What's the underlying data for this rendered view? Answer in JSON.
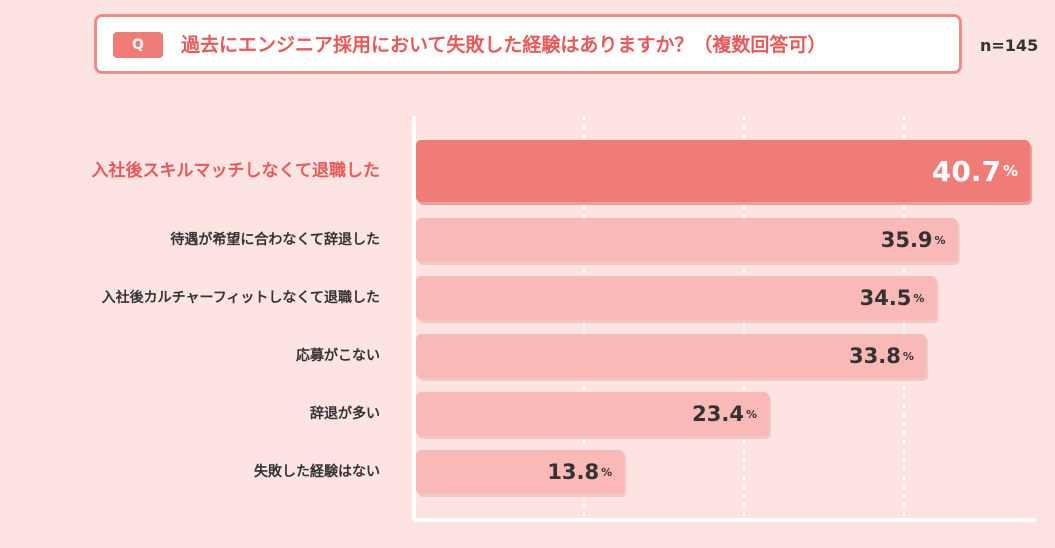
{
  "question": {
    "badge": "Q",
    "text": "過去にエンジニア採用において失敗した経験はありますか？（複数回答可）",
    "sample_size": "n=145"
  },
  "colors": {
    "highlight_bar": "#f07c77",
    "bar": "#f9b9b6",
    "highlight_label": "#e85a59",
    "label": "#333333",
    "grid": "#ffffff",
    "background": "#fde3e2"
  },
  "chart_data": {
    "type": "bar",
    "orientation": "horizontal",
    "categories": [
      "入社後スキルマッチしなくて退職した",
      "待遇が希望に合わなくて辞退した",
      "入社後カルチャーフィットしなくて退職した",
      "応募がこない",
      "辞退が多い",
      "失敗した経験はない"
    ],
    "values": [
      40.7,
      35.9,
      34.5,
      33.8,
      23.4,
      13.8
    ],
    "value_labels": [
      "40.7",
      "35.9",
      "34.5",
      "33.8",
      "23.4",
      "13.8"
    ],
    "unit": "%",
    "highlight_index": 0,
    "xlim": [
      0,
      40.7
    ],
    "grid": "vertical dashed"
  }
}
